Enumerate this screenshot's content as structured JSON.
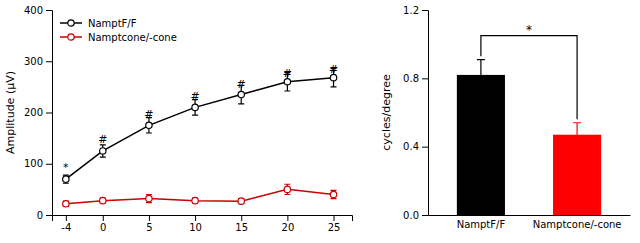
{
  "chart_data": [
    {
      "type": "line",
      "x": [
        -4,
        0,
        5,
        10,
        15,
        20,
        25
      ],
      "series": [
        {
          "name": "NamptF/F",
          "color": "#000000",
          "marker": "circle",
          "values": [
            70,
            125,
            175,
            210,
            235,
            260,
            268
          ],
          "errors": [
            8,
            12,
            15,
            15,
            18,
            18,
            18
          ]
        },
        {
          "name": "Namptcone/-cone",
          "color": "#cc0000",
          "marker": "circle",
          "values": [
            22,
            28,
            32,
            28,
            27,
            50,
            40
          ],
          "errors": [
            5,
            5,
            8,
            5,
            5,
            10,
            8
          ]
        }
      ],
      "xlim": [
        -5.5,
        27
      ],
      "xticks": [
        -4,
        0,
        5,
        10,
        15,
        20,
        25
      ],
      "ylim": [
        0,
        400
      ],
      "yticks": [
        0,
        100,
        200,
        300,
        400
      ],
      "ylabel": "Amplitude (μV)",
      "legend": "upper left",
      "annotations": [
        {
          "text": "#",
          "x": 0,
          "y": 140
        },
        {
          "text": "#",
          "x": 5,
          "y": 190
        },
        {
          "text": "#",
          "x": 10,
          "y": 225
        },
        {
          "text": "#",
          "x": 15,
          "y": 248
        },
        {
          "text": "#",
          "x": 20,
          "y": 270
        },
        {
          "text": "#",
          "x": 25,
          "y": 278
        },
        {
          "text": "*",
          "x": -4,
          "y": 85
        }
      ]
    },
    {
      "type": "bar",
      "categories": [
        "NamptF/F",
        "Namptcone/-cone"
      ],
      "values": [
        0.82,
        0.47
      ],
      "errors": [
        0.09,
        0.07
      ],
      "colors": [
        "#000000",
        "#ff0000"
      ],
      "ylim": [
        0,
        1.2
      ],
      "yticks": [
        {
          "value": 0,
          "label": "0.0"
        },
        0.4,
        0.8,
        1.2
      ],
      "ylabel": "cycles/degree",
      "annotations": [
        {
          "text": "*",
          "y": 1.05,
          "bracket": [
            0.93,
            0.56
          ]
        }
      ]
    }
  ]
}
